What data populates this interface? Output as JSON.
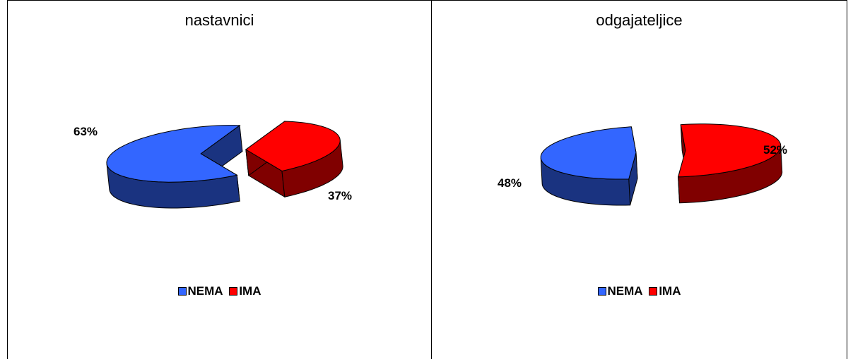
{
  "chart_data": [
    {
      "type": "pie",
      "title": "nastavnici",
      "categories": [
        "NEMA",
        "IMA"
      ],
      "values": [
        63,
        37
      ],
      "value_labels": [
        "63%",
        "37%"
      ],
      "colors": [
        "#3366FF",
        "#FF0000"
      ],
      "side_colors": [
        "#1A3380",
        "#800000"
      ],
      "legend": {
        "placement": "bottom",
        "entries": [
          "NEMA",
          "IMA"
        ]
      }
    },
    {
      "type": "pie",
      "title": "odgajateljice",
      "categories": [
        "NEMA",
        "IMA"
      ],
      "values": [
        48,
        52
      ],
      "value_labels": [
        "48%",
        "52%"
      ],
      "colors": [
        "#3366FF",
        "#FF0000"
      ],
      "side_colors": [
        "#1A3380",
        "#800000"
      ],
      "legend": {
        "placement": "bottom",
        "entries": [
          "NEMA",
          "IMA"
        ]
      }
    }
  ]
}
